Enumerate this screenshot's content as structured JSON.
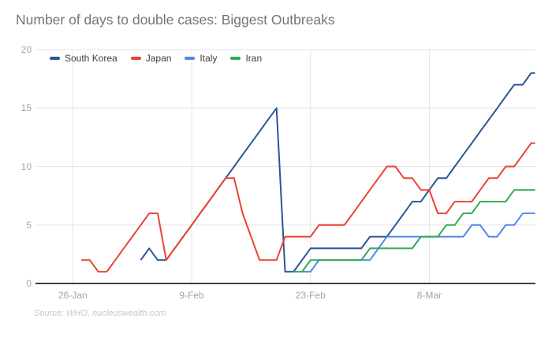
{
  "chart_data": {
    "type": "line",
    "title": "Number of days to double cases: Biggest Outbreaks",
    "source_note": "Source: WHO, nucleuswealth.com",
    "xlabel": "",
    "ylabel": "",
    "ylim": [
      0,
      20
    ],
    "y_ticks": [
      0,
      5,
      10,
      15,
      20
    ],
    "grid": true,
    "legend_position": "top-left-inside",
    "x_axis": {
      "unit": "days since 26-Jan-2020",
      "domain_days": [
        -4.4,
        54.5
      ],
      "ticks": [
        {
          "day": 0,
          "label": "26-Jan"
        },
        {
          "day": 14,
          "label": "9-Feb"
        },
        {
          "day": 28,
          "label": "23-Feb"
        },
        {
          "day": 42,
          "label": "8-Mar"
        }
      ]
    },
    "series": [
      {
        "name": "South Korea",
        "color": "#2a5694",
        "start_date": "3-Feb",
        "start_day": 8,
        "values": [
          2,
          3,
          2,
          2,
          3,
          4,
          5,
          6,
          7,
          8,
          9,
          10,
          11,
          12,
          13,
          14,
          15,
          1,
          1,
          2,
          3,
          3,
          3,
          3,
          3,
          3,
          3,
          4,
          4,
          4,
          5,
          6,
          7,
          7,
          8,
          9,
          9,
          10,
          11,
          12,
          13,
          14,
          15,
          16,
          17,
          17,
          18
        ]
      },
      {
        "name": "Japan",
        "color": "#ea4335",
        "start_date": "27-Jan",
        "start_day": 1,
        "values": [
          2,
          2,
          1,
          1,
          2,
          3,
          4,
          5,
          6,
          6,
          2,
          3,
          4,
          5,
          6,
          7,
          8,
          9,
          9,
          6,
          4,
          2,
          2,
          2,
          4,
          4,
          4,
          4,
          5,
          5,
          5,
          5,
          6,
          7,
          8,
          9,
          10,
          10,
          9,
          9,
          8,
          8,
          6,
          6,
          7,
          7,
          7,
          8,
          9,
          9,
          10,
          10,
          11,
          12
        ]
      },
      {
        "name": "Italy",
        "color": "#4e86ec",
        "start_date": "22-Feb",
        "start_day": 27,
        "values": [
          1,
          1,
          2,
          2,
          2,
          2,
          2,
          2,
          2,
          3,
          4,
          4,
          4,
          4,
          4,
          4,
          4,
          4,
          4,
          4,
          5,
          5,
          4,
          4,
          5,
          5,
          6,
          6
        ]
      },
      {
        "name": "Iran",
        "color": "#34a853",
        "start_date": "21-Feb",
        "start_day": 26,
        "values": [
          1,
          1,
          2,
          2,
          2,
          2,
          2,
          2,
          2,
          3,
          3,
          3,
          3,
          3,
          3,
          4,
          4,
          4,
          5,
          5,
          6,
          6,
          7,
          7,
          7,
          7,
          8,
          8,
          8
        ]
      }
    ]
  },
  "style_colors": {
    "gridline": "#e6e6e6",
    "axis_line": "#3f3f3f",
    "tick_label": "#a3a3a3",
    "title": "#757575",
    "legend_text": "#3c3c3c",
    "source_text": "#c7c7c7",
    "background": "#ffffff"
  }
}
